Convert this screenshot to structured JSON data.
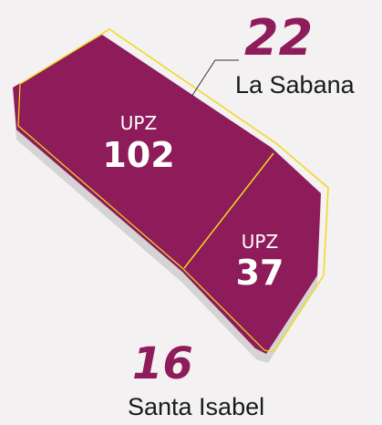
{
  "map": {
    "regions": [
      {
        "label": "UPZ",
        "number": "102"
      },
      {
        "label": "UPZ",
        "number": "37"
      }
    ],
    "callouts": [
      {
        "number": "22",
        "name": "La Sabana"
      },
      {
        "number": "16",
        "name": "Santa Isabel"
      }
    ]
  }
}
